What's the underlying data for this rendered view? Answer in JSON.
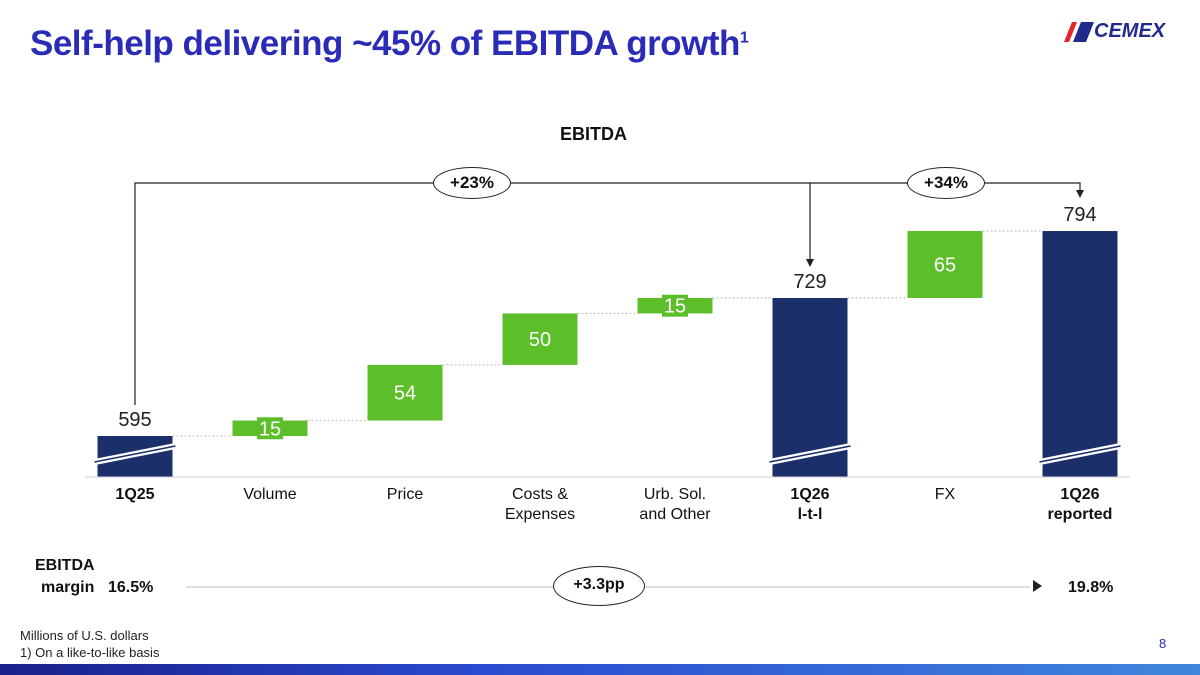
{
  "title": "Self-help delivering ~45% of EBITDA growth",
  "title_sup": "1",
  "logo": "CEMEX",
  "colors": {
    "total": "#1b2f6b",
    "increase": "#5cbf2a",
    "title": "#2a2cb8"
  },
  "chart_data": {
    "type": "waterfall",
    "title": "EBITDA",
    "categories": [
      "1Q25",
      "Volume",
      "Price",
      "Costs & Expenses",
      "Urb. Sol. and Other",
      "1Q26 l-t-l",
      "FX",
      "1Q26 reported"
    ],
    "category_lines": [
      [
        "1Q25"
      ],
      [
        "Volume"
      ],
      [
        "Price"
      ],
      [
        "Costs &",
        "Expenses"
      ],
      [
        "Urb. Sol.",
        "and Other"
      ],
      [
        "1Q26",
        "l-t-l"
      ],
      [
        "FX"
      ],
      [
        "1Q26",
        "reported"
      ]
    ],
    "bold_categories": [
      0,
      5,
      7
    ],
    "values": [
      595,
      15,
      54,
      50,
      15,
      729,
      65,
      794
    ],
    "kinds": [
      "total",
      "delta",
      "delta",
      "delta",
      "delta",
      "total",
      "delta",
      "total"
    ],
    "labels": [
      "595",
      "15",
      "54",
      "50",
      "15",
      "729",
      "65",
      "794"
    ],
    "annotations": [
      {
        "from": "1Q25",
        "to": "1Q26 l-t-l",
        "text": "+23%"
      },
      {
        "from": "1Q26 l-t-l",
        "to": "1Q26 reported",
        "text": "+34%"
      }
    ],
    "axis_break": true
  },
  "margin": {
    "label1": "EBITDA",
    "label2": "margin",
    "start": "16.5%",
    "change": "+3.3pp",
    "end": "19.8%"
  },
  "footnotes": [
    "Millions of U.S. dollars",
    "1) On a like-to-like basis"
  ],
  "page": "8"
}
